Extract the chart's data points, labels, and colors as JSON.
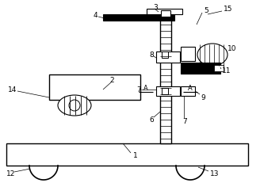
{
  "bg_color": "#ffffff",
  "line_color": "#000000",
  "fig_width": 3.28,
  "fig_height": 2.32,
  "dpi": 100
}
